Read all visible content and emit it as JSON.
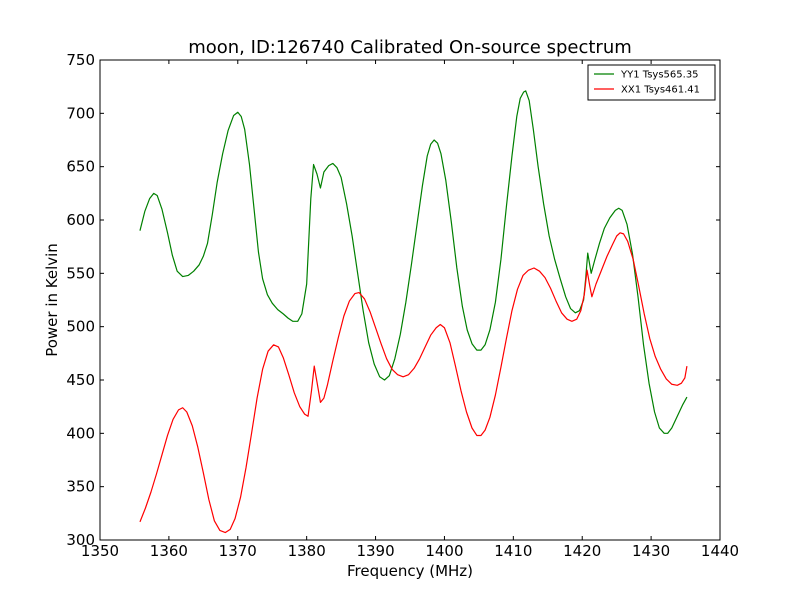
{
  "chart_data": {
    "type": "line",
    "title": "moon, ID:126740 Calibrated On-source spectrum",
    "xlabel": "Frequency (MHz)",
    "ylabel": "Power in Kelvin",
    "xlim": [
      1350,
      1440
    ],
    "ylim": [
      300,
      750
    ],
    "xticks": [
      "1350",
      "1360",
      "1370",
      "1380",
      "1390",
      "1400",
      "1410",
      "1420",
      "1430",
      "1440"
    ],
    "yticks": [
      "300",
      "350",
      "400",
      "450",
      "500",
      "550",
      "600",
      "650",
      "700",
      "750"
    ],
    "grid": false,
    "legend_position": "top-right",
    "series": [
      {
        "name": "YY1 Tsys565.35",
        "color": "#008000",
        "points": [
          [
            1355.8,
            590
          ],
          [
            1356.5,
            608
          ],
          [
            1357.2,
            620
          ],
          [
            1357.8,
            625
          ],
          [
            1358.3,
            623
          ],
          [
            1359.0,
            610
          ],
          [
            1359.8,
            588
          ],
          [
            1360.5,
            567
          ],
          [
            1361.2,
            552
          ],
          [
            1362.0,
            547
          ],
          [
            1362.8,
            548
          ],
          [
            1363.6,
            552
          ],
          [
            1364.4,
            558
          ],
          [
            1365.0,
            566
          ],
          [
            1365.6,
            578
          ],
          [
            1366.3,
            605
          ],
          [
            1367.0,
            635
          ],
          [
            1367.8,
            662
          ],
          [
            1368.6,
            684
          ],
          [
            1369.4,
            698
          ],
          [
            1370.0,
            701
          ],
          [
            1370.5,
            697
          ],
          [
            1371.0,
            685
          ],
          [
            1371.7,
            652
          ],
          [
            1372.4,
            608
          ],
          [
            1373.0,
            570
          ],
          [
            1373.6,
            545
          ],
          [
            1374.3,
            530
          ],
          [
            1375.0,
            522
          ],
          [
            1375.8,
            516
          ],
          [
            1376.6,
            512
          ],
          [
            1377.3,
            508
          ],
          [
            1378.0,
            505
          ],
          [
            1378.7,
            505
          ],
          [
            1379.3,
            512
          ],
          [
            1380.0,
            540
          ],
          [
            1380.6,
            620
          ],
          [
            1381.0,
            652
          ],
          [
            1381.5,
            643
          ],
          [
            1382.0,
            630
          ],
          [
            1382.5,
            645
          ],
          [
            1383.2,
            651
          ],
          [
            1383.8,
            653
          ],
          [
            1384.4,
            649
          ],
          [
            1385.0,
            640
          ],
          [
            1385.8,
            615
          ],
          [
            1386.6,
            585
          ],
          [
            1387.4,
            550
          ],
          [
            1388.2,
            515
          ],
          [
            1389.0,
            485
          ],
          [
            1389.8,
            465
          ],
          [
            1390.6,
            453
          ],
          [
            1391.3,
            450
          ],
          [
            1392.0,
            454
          ],
          [
            1392.8,
            470
          ],
          [
            1393.6,
            493
          ],
          [
            1394.4,
            523
          ],
          [
            1395.2,
            558
          ],
          [
            1396.0,
            595
          ],
          [
            1396.8,
            632
          ],
          [
            1397.5,
            660
          ],
          [
            1398.0,
            671
          ],
          [
            1398.5,
            675
          ],
          [
            1399.0,
            672
          ],
          [
            1399.5,
            662
          ],
          [
            1400.2,
            637
          ],
          [
            1401.0,
            598
          ],
          [
            1401.8,
            555
          ],
          [
            1402.6,
            519
          ],
          [
            1403.3,
            497
          ],
          [
            1404.0,
            484
          ],
          [
            1404.7,
            478
          ],
          [
            1405.3,
            478
          ],
          [
            1405.9,
            483
          ],
          [
            1406.6,
            497
          ],
          [
            1407.4,
            523
          ],
          [
            1408.2,
            563
          ],
          [
            1409.0,
            613
          ],
          [
            1409.8,
            660
          ],
          [
            1410.5,
            697
          ],
          [
            1411.0,
            714
          ],
          [
            1411.5,
            720
          ],
          [
            1411.8,
            721
          ],
          [
            1412.3,
            712
          ],
          [
            1412.9,
            685
          ],
          [
            1413.6,
            650
          ],
          [
            1414.4,
            615
          ],
          [
            1415.2,
            585
          ],
          [
            1416.0,
            563
          ],
          [
            1416.8,
            545
          ],
          [
            1417.6,
            528
          ],
          [
            1418.3,
            517
          ],
          [
            1419.0,
            513
          ],
          [
            1419.6,
            515
          ],
          [
            1420.2,
            525
          ],
          [
            1420.5,
            545
          ],
          [
            1420.8,
            569
          ],
          [
            1421.3,
            550
          ],
          [
            1421.8,
            562
          ],
          [
            1422.5,
            578
          ],
          [
            1423.2,
            592
          ],
          [
            1424.0,
            602
          ],
          [
            1424.8,
            609
          ],
          [
            1425.3,
            611
          ],
          [
            1425.8,
            609
          ],
          [
            1426.5,
            596
          ],
          [
            1427.3,
            568
          ],
          [
            1428.1,
            528
          ],
          [
            1428.9,
            483
          ],
          [
            1429.7,
            447
          ],
          [
            1430.5,
            420
          ],
          [
            1431.2,
            405
          ],
          [
            1431.9,
            400
          ],
          [
            1432.4,
            400
          ],
          [
            1433.0,
            405
          ],
          [
            1433.8,
            416
          ],
          [
            1434.6,
            427
          ],
          [
            1435.2,
            434
          ]
        ]
      },
      {
        "name": "XX1 Tsys461.41",
        "color": "#ff0000",
        "points": [
          [
            1355.8,
            317
          ],
          [
            1356.6,
            330
          ],
          [
            1357.4,
            345
          ],
          [
            1358.2,
            362
          ],
          [
            1359.0,
            380
          ],
          [
            1359.8,
            398
          ],
          [
            1360.6,
            413
          ],
          [
            1361.4,
            422
          ],
          [
            1362.0,
            424
          ],
          [
            1362.6,
            420
          ],
          [
            1363.4,
            407
          ],
          [
            1364.2,
            387
          ],
          [
            1365.0,
            363
          ],
          [
            1365.8,
            338
          ],
          [
            1366.6,
            318
          ],
          [
            1367.4,
            309
          ],
          [
            1368.2,
            307
          ],
          [
            1368.9,
            310
          ],
          [
            1369.6,
            320
          ],
          [
            1370.4,
            340
          ],
          [
            1371.2,
            368
          ],
          [
            1372.0,
            400
          ],
          [
            1372.8,
            433
          ],
          [
            1373.6,
            460
          ],
          [
            1374.4,
            477
          ],
          [
            1375.2,
            483
          ],
          [
            1375.9,
            481
          ],
          [
            1376.6,
            471
          ],
          [
            1377.4,
            455
          ],
          [
            1378.2,
            438
          ],
          [
            1379.0,
            425
          ],
          [
            1379.7,
            418
          ],
          [
            1380.2,
            416
          ],
          [
            1380.7,
            440
          ],
          [
            1381.1,
            463
          ],
          [
            1381.5,
            448
          ],
          [
            1382.0,
            429
          ],
          [
            1382.5,
            433
          ],
          [
            1383.0,
            445
          ],
          [
            1383.8,
            468
          ],
          [
            1384.6,
            490
          ],
          [
            1385.4,
            510
          ],
          [
            1386.2,
            524
          ],
          [
            1387.0,
            531
          ],
          [
            1387.6,
            532
          ],
          [
            1388.4,
            526
          ],
          [
            1389.2,
            514
          ],
          [
            1390.0,
            499
          ],
          [
            1390.8,
            484
          ],
          [
            1391.6,
            470
          ],
          [
            1392.4,
            460
          ],
          [
            1393.2,
            455
          ],
          [
            1394.0,
            453
          ],
          [
            1394.8,
            455
          ],
          [
            1395.6,
            461
          ],
          [
            1396.4,
            470
          ],
          [
            1397.2,
            481
          ],
          [
            1398.0,
            492
          ],
          [
            1398.8,
            499
          ],
          [
            1399.4,
            502
          ],
          [
            1400.0,
            499
          ],
          [
            1400.8,
            485
          ],
          [
            1401.6,
            463
          ],
          [
            1402.4,
            440
          ],
          [
            1403.2,
            420
          ],
          [
            1404.0,
            405
          ],
          [
            1404.7,
            398
          ],
          [
            1405.3,
            398
          ],
          [
            1405.9,
            403
          ],
          [
            1406.6,
            415
          ],
          [
            1407.4,
            436
          ],
          [
            1408.2,
            462
          ],
          [
            1409.0,
            489
          ],
          [
            1409.8,
            515
          ],
          [
            1410.6,
            535
          ],
          [
            1411.4,
            548
          ],
          [
            1412.2,
            553
          ],
          [
            1413.0,
            555
          ],
          [
            1413.8,
            552
          ],
          [
            1414.6,
            546
          ],
          [
            1415.4,
            536
          ],
          [
            1416.2,
            524
          ],
          [
            1417.0,
            513
          ],
          [
            1417.8,
            507
          ],
          [
            1418.5,
            505
          ],
          [
            1419.2,
            507
          ],
          [
            1419.8,
            515
          ],
          [
            1420.3,
            530
          ],
          [
            1420.7,
            553
          ],
          [
            1421.1,
            538
          ],
          [
            1421.4,
            528
          ],
          [
            1422.0,
            540
          ],
          [
            1422.8,
            553
          ],
          [
            1423.6,
            566
          ],
          [
            1424.4,
            577
          ],
          [
            1425.0,
            585
          ],
          [
            1425.5,
            588
          ],
          [
            1426.0,
            587
          ],
          [
            1426.6,
            580
          ],
          [
            1427.4,
            563
          ],
          [
            1428.2,
            538
          ],
          [
            1429.0,
            512
          ],
          [
            1429.8,
            489
          ],
          [
            1430.6,
            472
          ],
          [
            1431.4,
            460
          ],
          [
            1432.2,
            451
          ],
          [
            1433.0,
            446
          ],
          [
            1433.8,
            445
          ],
          [
            1434.4,
            447
          ],
          [
            1434.9,
            452
          ],
          [
            1435.2,
            463
          ]
        ]
      }
    ]
  }
}
